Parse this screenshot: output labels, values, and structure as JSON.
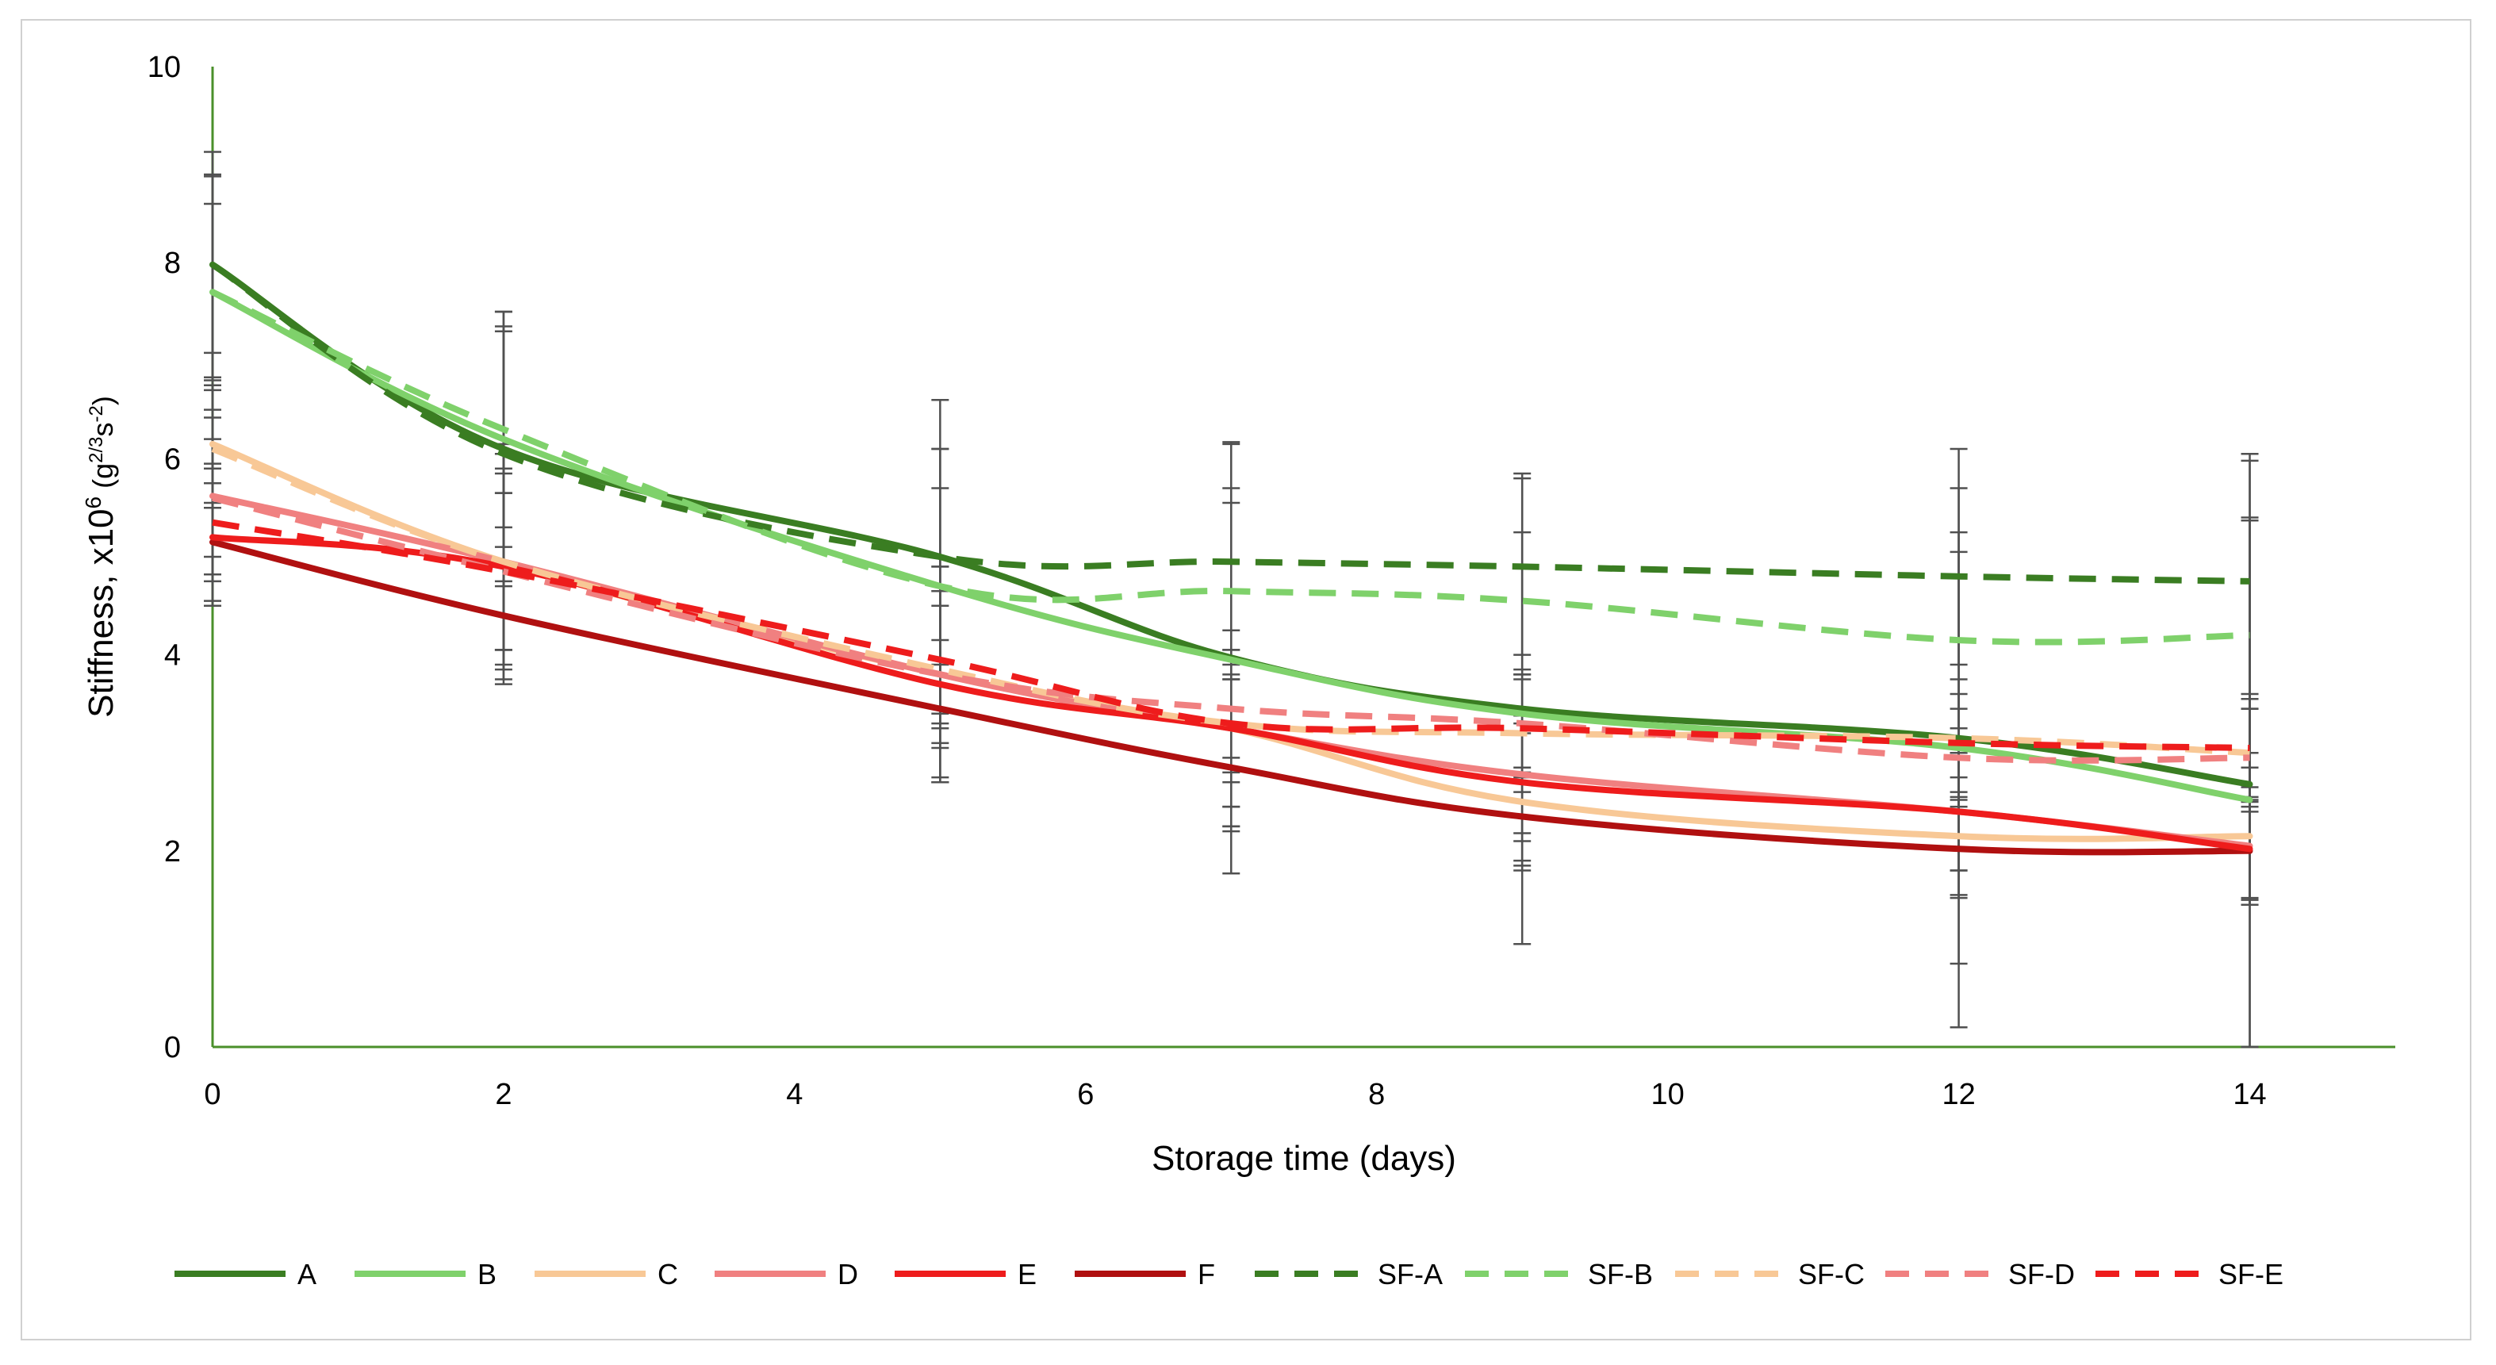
{
  "chart_data": {
    "type": "line",
    "title": "",
    "xlabel": "Storage time (days)",
    "ylabel_main": "Stiffness, x10",
    "ylabel_exp": "6",
    "ylabel_unit_open": " (g",
    "ylabel_unit_exp1": "2/3",
    "ylabel_unit_mid": "s",
    "ylabel_unit_exp2": "-2",
    "ylabel_unit_close": ")",
    "xlim": [
      0,
      15
    ],
    "ylim": [
      0,
      10
    ],
    "x_ticks": [
      0,
      2,
      4,
      6,
      8,
      10,
      12,
      14
    ],
    "y_ticks": [
      0,
      2,
      4,
      6,
      8,
      10
    ],
    "x_tick_labels": [
      "0",
      "2",
      "4",
      "6",
      "8",
      "10",
      "12",
      "14"
    ],
    "y_tick_labels": [
      "0",
      "2",
      "4",
      "6",
      "8",
      "10"
    ],
    "legend_position": "bottom",
    "series": [
      {
        "name": "A",
        "color": "#3a7d22",
        "dashed": false,
        "x": [
          0,
          2,
          5,
          7,
          9,
          12,
          14
        ],
        "values": [
          7.98,
          6.1,
          5.0,
          3.97,
          3.45,
          3.15,
          2.68
        ],
        "err": [
          1.15,
          1.4,
          1.6,
          2.2,
          2.4,
          2.95,
          3.3
        ]
      },
      {
        "name": "B",
        "color": "#7fd16b",
        "dashed": false,
        "x": [
          0,
          2,
          5,
          7,
          9,
          12,
          14
        ],
        "values": [
          7.7,
          6.2,
          4.7,
          3.95,
          3.4,
          3.05,
          2.52
        ],
        "err": [
          1.2,
          1.3,
          1.4,
          1.75,
          1.5,
          2.2,
          2.85
        ]
      },
      {
        "name": "C",
        "color": "#f8c896",
        "dashed": false,
        "x": [
          0,
          2,
          5,
          7,
          9,
          12,
          14
        ],
        "values": [
          6.15,
          4.95,
          3.8,
          3.25,
          2.5,
          2.15,
          2.15
        ],
        "err": [
          0.6,
          1.2,
          1.1,
          1.0,
          0.7,
          0.6,
          0.7
        ]
      },
      {
        "name": "D",
        "color": "#f08080",
        "dashed": false,
        "x": [
          0,
          2,
          5,
          7,
          9,
          12,
          14
        ],
        "values": [
          5.62,
          4.95,
          3.8,
          3.25,
          2.78,
          2.4,
          2.05
        ],
        "err": [
          0.8,
          1.1,
          1.1,
          0.8,
          0.6,
          0.6,
          0.6
        ]
      },
      {
        "name": "E",
        "color": "#ee1c1c",
        "dashed": false,
        "x": [
          0,
          2,
          5,
          7,
          9,
          12,
          14
        ],
        "values": [
          5.2,
          4.9,
          3.7,
          3.25,
          2.7,
          2.4,
          2.02
        ],
        "err": [
          0.7,
          1.0,
          1.0,
          0.8,
          0.6,
          0.6,
          0.5
        ]
      },
      {
        "name": "F",
        "color": "#b01010",
        "dashed": false,
        "x": [
          0,
          2,
          5,
          7,
          9,
          12,
          14
        ],
        "values": [
          5.15,
          4.4,
          3.45,
          2.85,
          2.35,
          2.02,
          2.0
        ],
        "err": [
          0.6,
          0.7,
          0.7,
          0.6,
          0.5,
          0.5,
          0.5
        ]
      },
      {
        "name": "SF-A",
        "color": "#3a7d22",
        "dashed": true,
        "x": [
          0,
          2,
          5,
          7,
          9,
          12,
          14
        ],
        "values": [
          7.98,
          6.05,
          5.0,
          4.95,
          4.9,
          4.8,
          4.75
        ],
        "err": [
          0.9,
          1.3,
          1.1,
          1.2,
          0.9,
          0.9,
          1.3
        ]
      },
      {
        "name": "SF-B",
        "color": "#7fd16b",
        "dashed": true,
        "x": [
          0,
          2,
          5,
          7,
          9,
          12,
          14
        ],
        "values": [
          7.7,
          6.3,
          4.7,
          4.65,
          4.55,
          4.15,
          4.2
        ],
        "err": [
          0.9,
          1.0,
          1.0,
          0.9,
          0.7,
          0.9,
          1.2
        ]
      },
      {
        "name": "SF-C",
        "color": "#f8c896",
        "dashed": true,
        "x": [
          0,
          2,
          5,
          7,
          9,
          12,
          14
        ],
        "values": [
          6.1,
          4.95,
          3.85,
          3.3,
          3.2,
          3.15,
          3.0
        ],
        "err": [
          0.6,
          0.9,
          0.8,
          0.6,
          0.6,
          0.6,
          0.6
        ]
      },
      {
        "name": "SF-D",
        "color": "#f08080",
        "dashed": true,
        "x": [
          0,
          2,
          5,
          7,
          9,
          12,
          14
        ],
        "values": [
          5.6,
          4.85,
          3.8,
          3.45,
          3.3,
          2.95,
          2.95
        ],
        "err": [
          0.6,
          0.8,
          0.7,
          0.5,
          0.5,
          0.5,
          0.5
        ]
      },
      {
        "name": "SF-E",
        "color": "#ee1c1c",
        "dashed": true,
        "x": [
          0,
          2,
          5,
          7,
          9,
          12,
          14
        ],
        "values": [
          5.35,
          4.85,
          3.95,
          3.3,
          3.25,
          3.1,
          3.05
        ],
        "err": [
          0.6,
          0.8,
          0.7,
          0.5,
          0.5,
          0.5,
          0.5
        ]
      }
    ]
  },
  "colors": {
    "axis": "#4a8f2a",
    "error_bar": "#505050",
    "frame": "#d0d0d0"
  }
}
